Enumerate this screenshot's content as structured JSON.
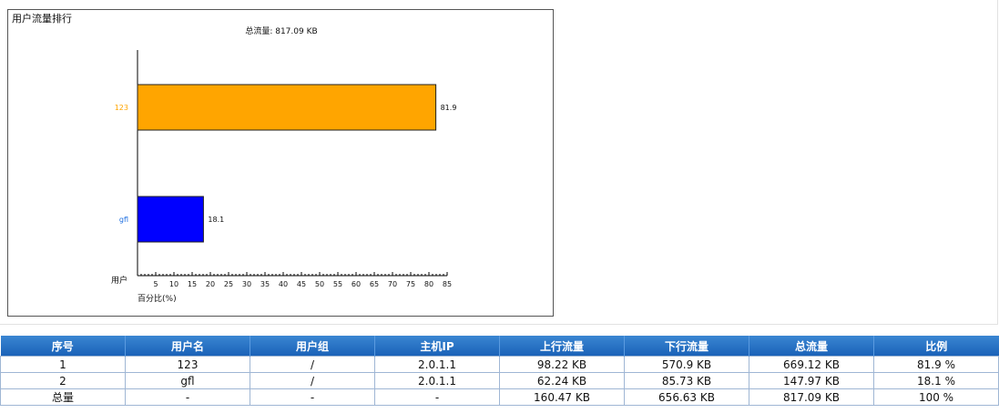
{
  "chart_data": {
    "type": "bar",
    "orientation": "horizontal",
    "corner_title": "用户流量排行",
    "title": "总流量: 817.09 KB",
    "ylabel": "用户",
    "xlabel": "百分比(%)",
    "categories": [
      "123",
      "gfl"
    ],
    "values": [
      81.9,
      18.1
    ],
    "bar_colors": [
      "#FFA500",
      "#0000FF"
    ],
    "label_colors": [
      "#FFA500",
      "#1E6FE0"
    ],
    "xlim": [
      0,
      85
    ],
    "xticks": [
      5,
      10,
      15,
      20,
      25,
      30,
      35,
      40,
      45,
      50,
      55,
      60,
      65,
      70,
      75,
      80,
      85
    ],
    "grid": false
  },
  "table": {
    "headers": [
      "序号",
      "用户名",
      "用户组",
      "主机IP",
      "上行流量",
      "下行流量",
      "总流量",
      "比例"
    ],
    "rows": [
      [
        "1",
        "123",
        "/",
        "2.0.1.1",
        "98.22 KB",
        "570.9 KB",
        "669.12 KB",
        "81.9 %"
      ],
      [
        "2",
        "gfl",
        "/",
        "2.0.1.1",
        "62.24 KB",
        "85.73 KB",
        "147.97 KB",
        "18.1 %"
      ],
      [
        "总量",
        "-",
        "-",
        "-",
        "160.47 KB",
        "656.63 KB",
        "817.09 KB",
        "100 %"
      ]
    ]
  }
}
